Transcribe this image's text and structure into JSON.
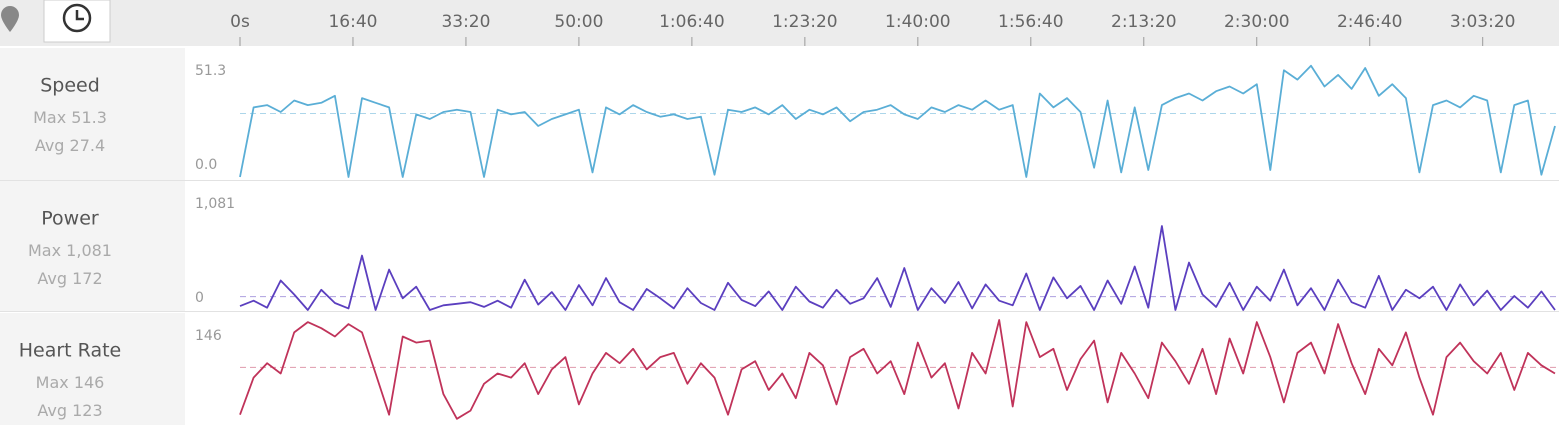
{
  "x_axis": {
    "xlim": [
      0,
      11640
    ],
    "xticks": [
      {
        "value": 0,
        "label": "0s"
      },
      {
        "value": 1000,
        "label": "16:40"
      },
      {
        "value": 2000,
        "label": "33:20"
      },
      {
        "value": 3000,
        "label": "50:00"
      },
      {
        "value": 4000,
        "label": "1:06:40"
      },
      {
        "value": 5000,
        "label": "1:23:20"
      },
      {
        "value": 6000,
        "label": "1:40:00"
      },
      {
        "value": 7000,
        "label": "1:56:40"
      },
      {
        "value": 8000,
        "label": "2:13:20"
      },
      {
        "value": 9000,
        "label": "2:30:00"
      },
      {
        "value": 10000,
        "label": "2:46:40"
      },
      {
        "value": 11000,
        "label": "3:03:20"
      }
    ],
    "x": [
      0,
      120,
      240,
      360,
      480,
      600,
      720,
      840,
      960,
      1080,
      1200,
      1320,
      1440,
      1560,
      1680,
      1800,
      1920,
      2040,
      2160,
      2280,
      2400,
      2520,
      2640,
      2760,
      2880,
      3000,
      3120,
      3240,
      3360,
      3480,
      3600,
      3720,
      3840,
      3960,
      4080,
      4200,
      4320,
      4440,
      4560,
      4680,
      4800,
      4920,
      5040,
      5160,
      5280,
      5400,
      5520,
      5640,
      5760,
      5880,
      6000,
      6120,
      6240,
      6360,
      6480,
      6600,
      6720,
      6840,
      6960,
      7080,
      7200,
      7320,
      7440,
      7560,
      7680,
      7800,
      7920,
      8040,
      8160,
      8280,
      8400,
      8520,
      8640,
      8760,
      8880,
      9000,
      9120,
      9240,
      9360,
      9480,
      9600,
      9720,
      9840,
      9960,
      10080,
      10200,
      10320,
      10440,
      10560,
      10680,
      10800,
      10920,
      11040,
      11160,
      11280,
      11400,
      11520,
      11640
    ]
  },
  "chart_data": [
    {
      "type": "line",
      "title": "Speed",
      "color": "#5aaed6",
      "stats": [
        {
          "label": "Max",
          "value": 51.3
        },
        {
          "label": "Avg",
          "value": 27.4
        }
      ],
      "ylim": [
        0,
        51.3
      ],
      "yticks": [
        {
          "value": 0,
          "label": "0.0"
        },
        51.3
      ],
      "values": [
        0,
        30,
        31,
        28,
        33,
        31,
        32,
        35,
        0,
        34,
        32,
        30,
        0,
        27,
        25,
        28,
        29,
        28,
        0,
        29,
        27,
        28,
        22,
        25,
        27,
        29,
        2,
        30,
        27,
        31,
        28,
        26,
        27,
        25,
        26,
        1,
        29,
        28,
        30,
        27,
        31,
        25,
        29,
        27,
        30,
        24,
        28,
        29,
        31,
        27,
        25,
        30,
        28,
        31,
        29,
        33,
        29,
        31,
        0,
        36,
        30,
        34,
        28,
        4,
        33,
        2,
        30,
        3,
        31,
        34,
        36,
        33,
        37,
        39,
        36,
        40,
        3,
        46,
        42,
        48,
        39,
        44,
        38,
        47,
        35,
        40,
        34,
        2,
        31,
        33,
        30,
        35,
        33,
        2,
        31,
        33,
        1,
        22
      ]
    },
    {
      "type": "line",
      "title": "Power",
      "color": "#5b3fbf",
      "stats": [
        {
          "label": "Max",
          "value": 1081,
          "value_label": "1,081"
        },
        {
          "label": "Avg",
          "value": 172
        }
      ],
      "ylim": [
        0,
        1081
      ],
      "yticks": [
        0,
        {
          "value": 1081,
          "label": "1,081"
        }
      ],
      "values": [
        50,
        120,
        30,
        380,
        200,
        0,
        260,
        90,
        20,
        700,
        0,
        520,
        150,
        300,
        0,
        60,
        80,
        100,
        40,
        120,
        30,
        390,
        70,
        230,
        0,
        320,
        60,
        410,
        100,
        0,
        270,
        150,
        20,
        280,
        90,
        0,
        350,
        130,
        50,
        240,
        0,
        300,
        110,
        30,
        260,
        80,
        150,
        410,
        40,
        540,
        0,
        280,
        90,
        360,
        20,
        330,
        120,
        60,
        470,
        0,
        420,
        150,
        310,
        0,
        380,
        80,
        560,
        30,
        1081,
        0,
        610,
        200,
        40,
        350,
        0,
        300,
        120,
        520,
        60,
        280,
        0,
        390,
        100,
        30,
        440,
        0,
        260,
        150,
        300,
        0,
        330,
        60,
        250,
        0,
        180,
        30,
        240,
        0
      ]
    },
    {
      "type": "line",
      "title": "Heart Rate",
      "color": "#c0335a",
      "stats": [
        {
          "label": "Max",
          "value": 146
        },
        {
          "label": "Avg",
          "value": 123
        }
      ],
      "ylim": [
        95,
        146
      ],
      "yticks": [
        146
      ],
      "values": [
        100,
        118,
        125,
        120,
        140,
        145,
        142,
        138,
        144,
        140,
        120,
        100,
        138,
        135,
        136,
        110,
        98,
        102,
        115,
        120,
        118,
        125,
        110,
        122,
        128,
        105,
        120,
        130,
        125,
        132,
        122,
        128,
        130,
        115,
        125,
        118,
        100,
        122,
        126,
        112,
        120,
        108,
        130,
        124,
        105,
        128,
        132,
        120,
        126,
        110,
        135,
        118,
        125,
        103,
        130,
        120,
        146,
        104,
        145,
        128,
        132,
        112,
        127,
        136,
        106,
        130,
        120,
        108,
        135,
        126,
        115,
        132,
        110,
        137,
        120,
        145,
        128,
        106,
        130,
        135,
        120,
        144,
        125,
        110,
        132,
        124,
        140,
        118,
        100,
        128,
        135,
        126,
        120,
        130,
        112,
        130,
        124,
        120
      ]
    }
  ]
}
